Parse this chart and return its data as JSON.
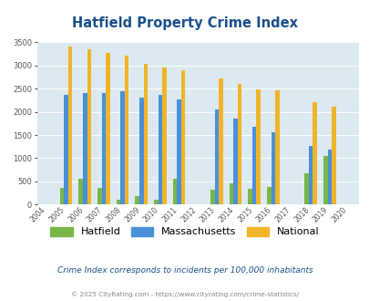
{
  "title": "Hatfield Property Crime Index",
  "years": [
    2004,
    2005,
    2006,
    2007,
    2008,
    2009,
    2010,
    2011,
    2012,
    2013,
    2014,
    2015,
    2016,
    2017,
    2018,
    2019,
    2020
  ],
  "hatfield": [
    0,
    370,
    560,
    370,
    110,
    185,
    100,
    555,
    0,
    320,
    450,
    345,
    385,
    0,
    670,
    1045,
    0
  ],
  "massachusetts": [
    0,
    2370,
    2400,
    2400,
    2440,
    2310,
    2360,
    2260,
    0,
    2045,
    1845,
    1675,
    1550,
    0,
    1265,
    1185,
    0
  ],
  "national": [
    0,
    3410,
    3340,
    3260,
    3200,
    3040,
    2950,
    2900,
    0,
    2720,
    2600,
    2490,
    2460,
    0,
    2200,
    2100,
    0
  ],
  "hatfield_color": "#7ab648",
  "massachusetts_color": "#4a90d9",
  "national_color": "#f0b429",
  "bg_color": "#dce9f0",
  "ylim": [
    0,
    3500
  ],
  "yticks": [
    0,
    500,
    1000,
    1500,
    2000,
    2500,
    3000,
    3500
  ],
  "subtitle": "Crime Index corresponds to incidents per 100,000 inhabitants",
  "footer": "© 2025 CityRating.com - https://www.cityrating.com/crime-statistics/",
  "title_color": "#1a4f8a",
  "subtitle_color": "#1a4f8a",
  "footer_color": "#888888",
  "bar_width": 0.22
}
